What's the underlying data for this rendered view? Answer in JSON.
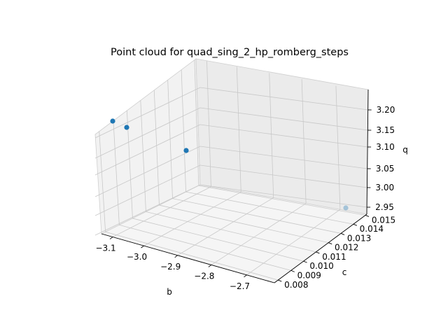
{
  "chart_data": {
    "type": "scatter",
    "title": "Point cloud for quad_sing_2_hp_romberg_steps",
    "xlabel": "b",
    "ylabel": "c",
    "zlabel": "q",
    "xticks": [
      "−3.1",
      "−3.0",
      "−2.9",
      "−2.8",
      "−2.7"
    ],
    "yticks": [
      "0.008",
      "0.009",
      "0.010",
      "0.011",
      "0.012",
      "0.013",
      "0.014",
      "0.015"
    ],
    "zticks": [
      "2.95",
      "3.00",
      "3.05",
      "3.10",
      "3.15",
      "3.20"
    ],
    "xlim": [
      -3.1,
      -2.65
    ],
    "ylim": [
      0.008,
      0.015
    ],
    "zlim": [
      2.94,
      3.24
    ],
    "grid": true,
    "marker_color": "#1f77b4",
    "points": [
      {
        "x": -3.1,
        "y": 0.015,
        "z": 3.22
      },
      {
        "x": -3.0,
        "y": 0.014,
        "z": 3.2
      },
      {
        "x": -2.85,
        "y": 0.0125,
        "z": 3.12
      },
      {
        "x": -2.65,
        "y": 0.008,
        "z": 2.95
      }
    ]
  }
}
